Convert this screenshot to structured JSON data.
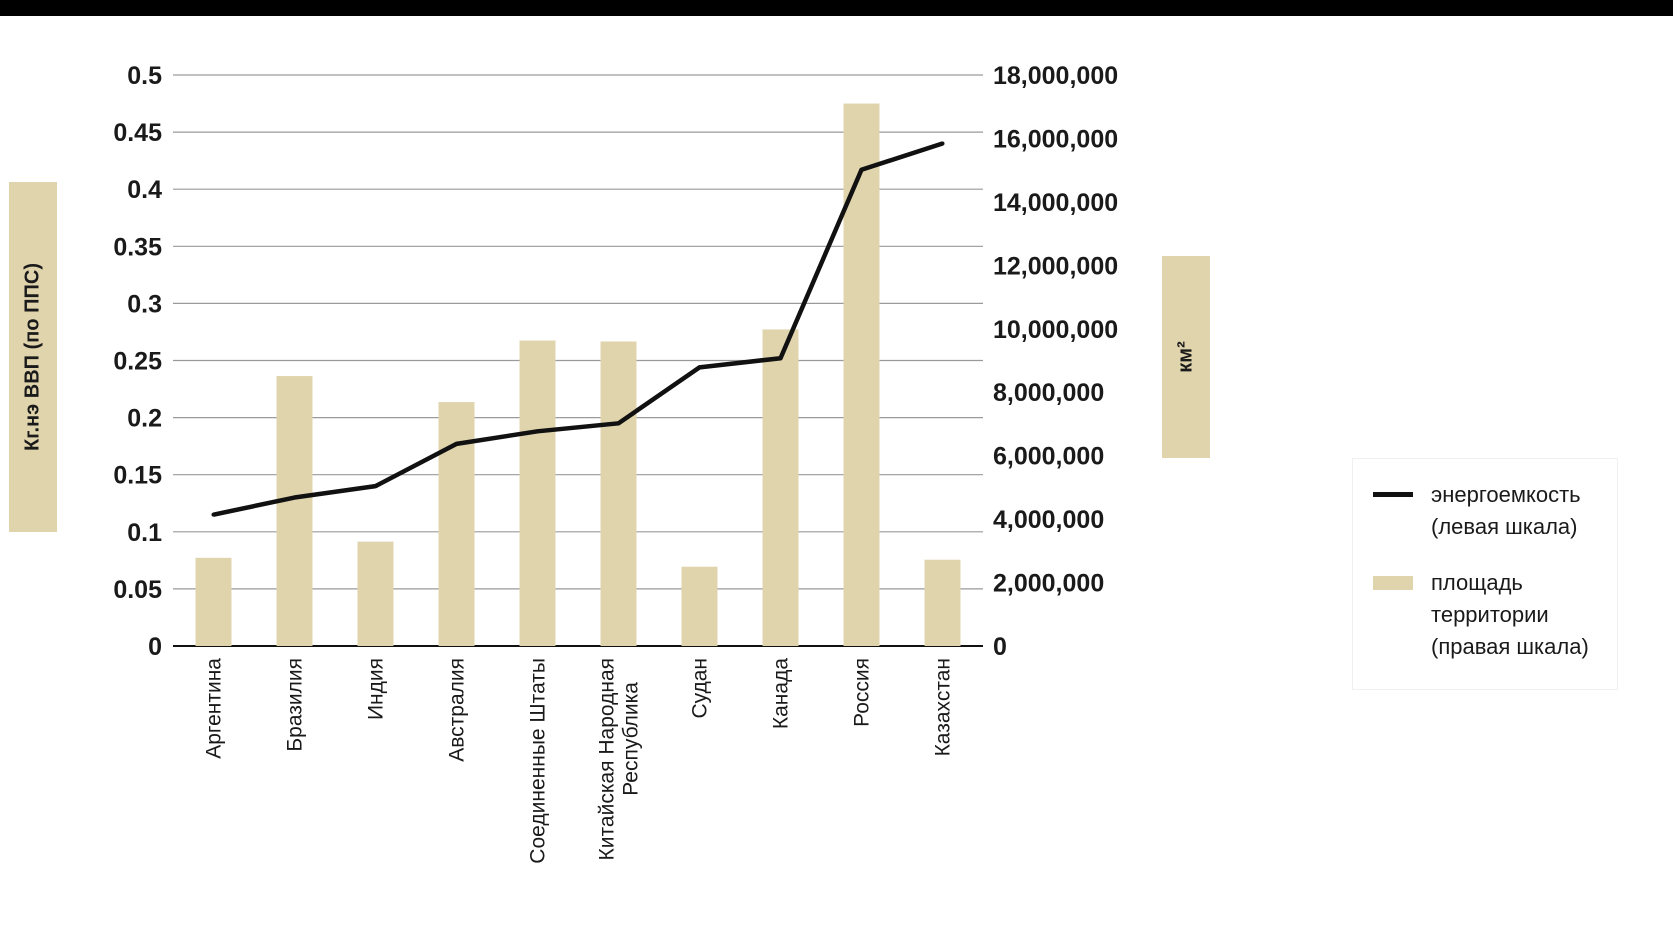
{
  "chart_data": {
    "type": "bar+line",
    "categories": [
      "Аргентина",
      "Бразилия",
      "Индия",
      "Австралия",
      "Соединенные Штаты",
      "Китайская Народная Республика",
      "Судан",
      "Канада",
      "Россия",
      "Казахстан"
    ],
    "series": [
      {
        "name": "площадь территории (правая шкала)",
        "type": "bar",
        "axis": "right",
        "color": "#e0d4ad",
        "values": [
          2780000,
          8510000,
          3290000,
          7690000,
          9630000,
          9600000,
          2500000,
          9980000,
          17100000,
          2720000
        ]
      },
      {
        "name": "энергоемкость (левая шкала)",
        "type": "line",
        "axis": "left",
        "color": "#111111",
        "values": [
          0.115,
          0.13,
          0.14,
          0.177,
          0.188,
          0.195,
          0.244,
          0.252,
          0.417,
          0.44
        ]
      }
    ],
    "y_left": {
      "label": "Кг.нэ ВВП (по ППС)",
      "ylim": [
        0,
        0.5
      ],
      "ticks": [
        "0",
        "0.05",
        "0.1",
        "0.15",
        "0.2",
        "0.25",
        "0.3",
        "0.35",
        "0.4",
        "0.45",
        "0.5"
      ]
    },
    "y_right": {
      "label": "км²",
      "ylim": [
        0,
        18000000
      ],
      "ticks": [
        "0",
        "2,000,000",
        "4,000,000",
        "6,000,000",
        "8,000,000",
        "10,000,000",
        "12,000,000",
        "14,000,000",
        "16,000,000",
        "18,000,000"
      ]
    },
    "grid": true,
    "legend_position": "right"
  },
  "legend": {
    "line_label": "энергоемкость\n(левая шкала)",
    "bar_label": "площадь\nтерритории\n(правая шкала)"
  }
}
